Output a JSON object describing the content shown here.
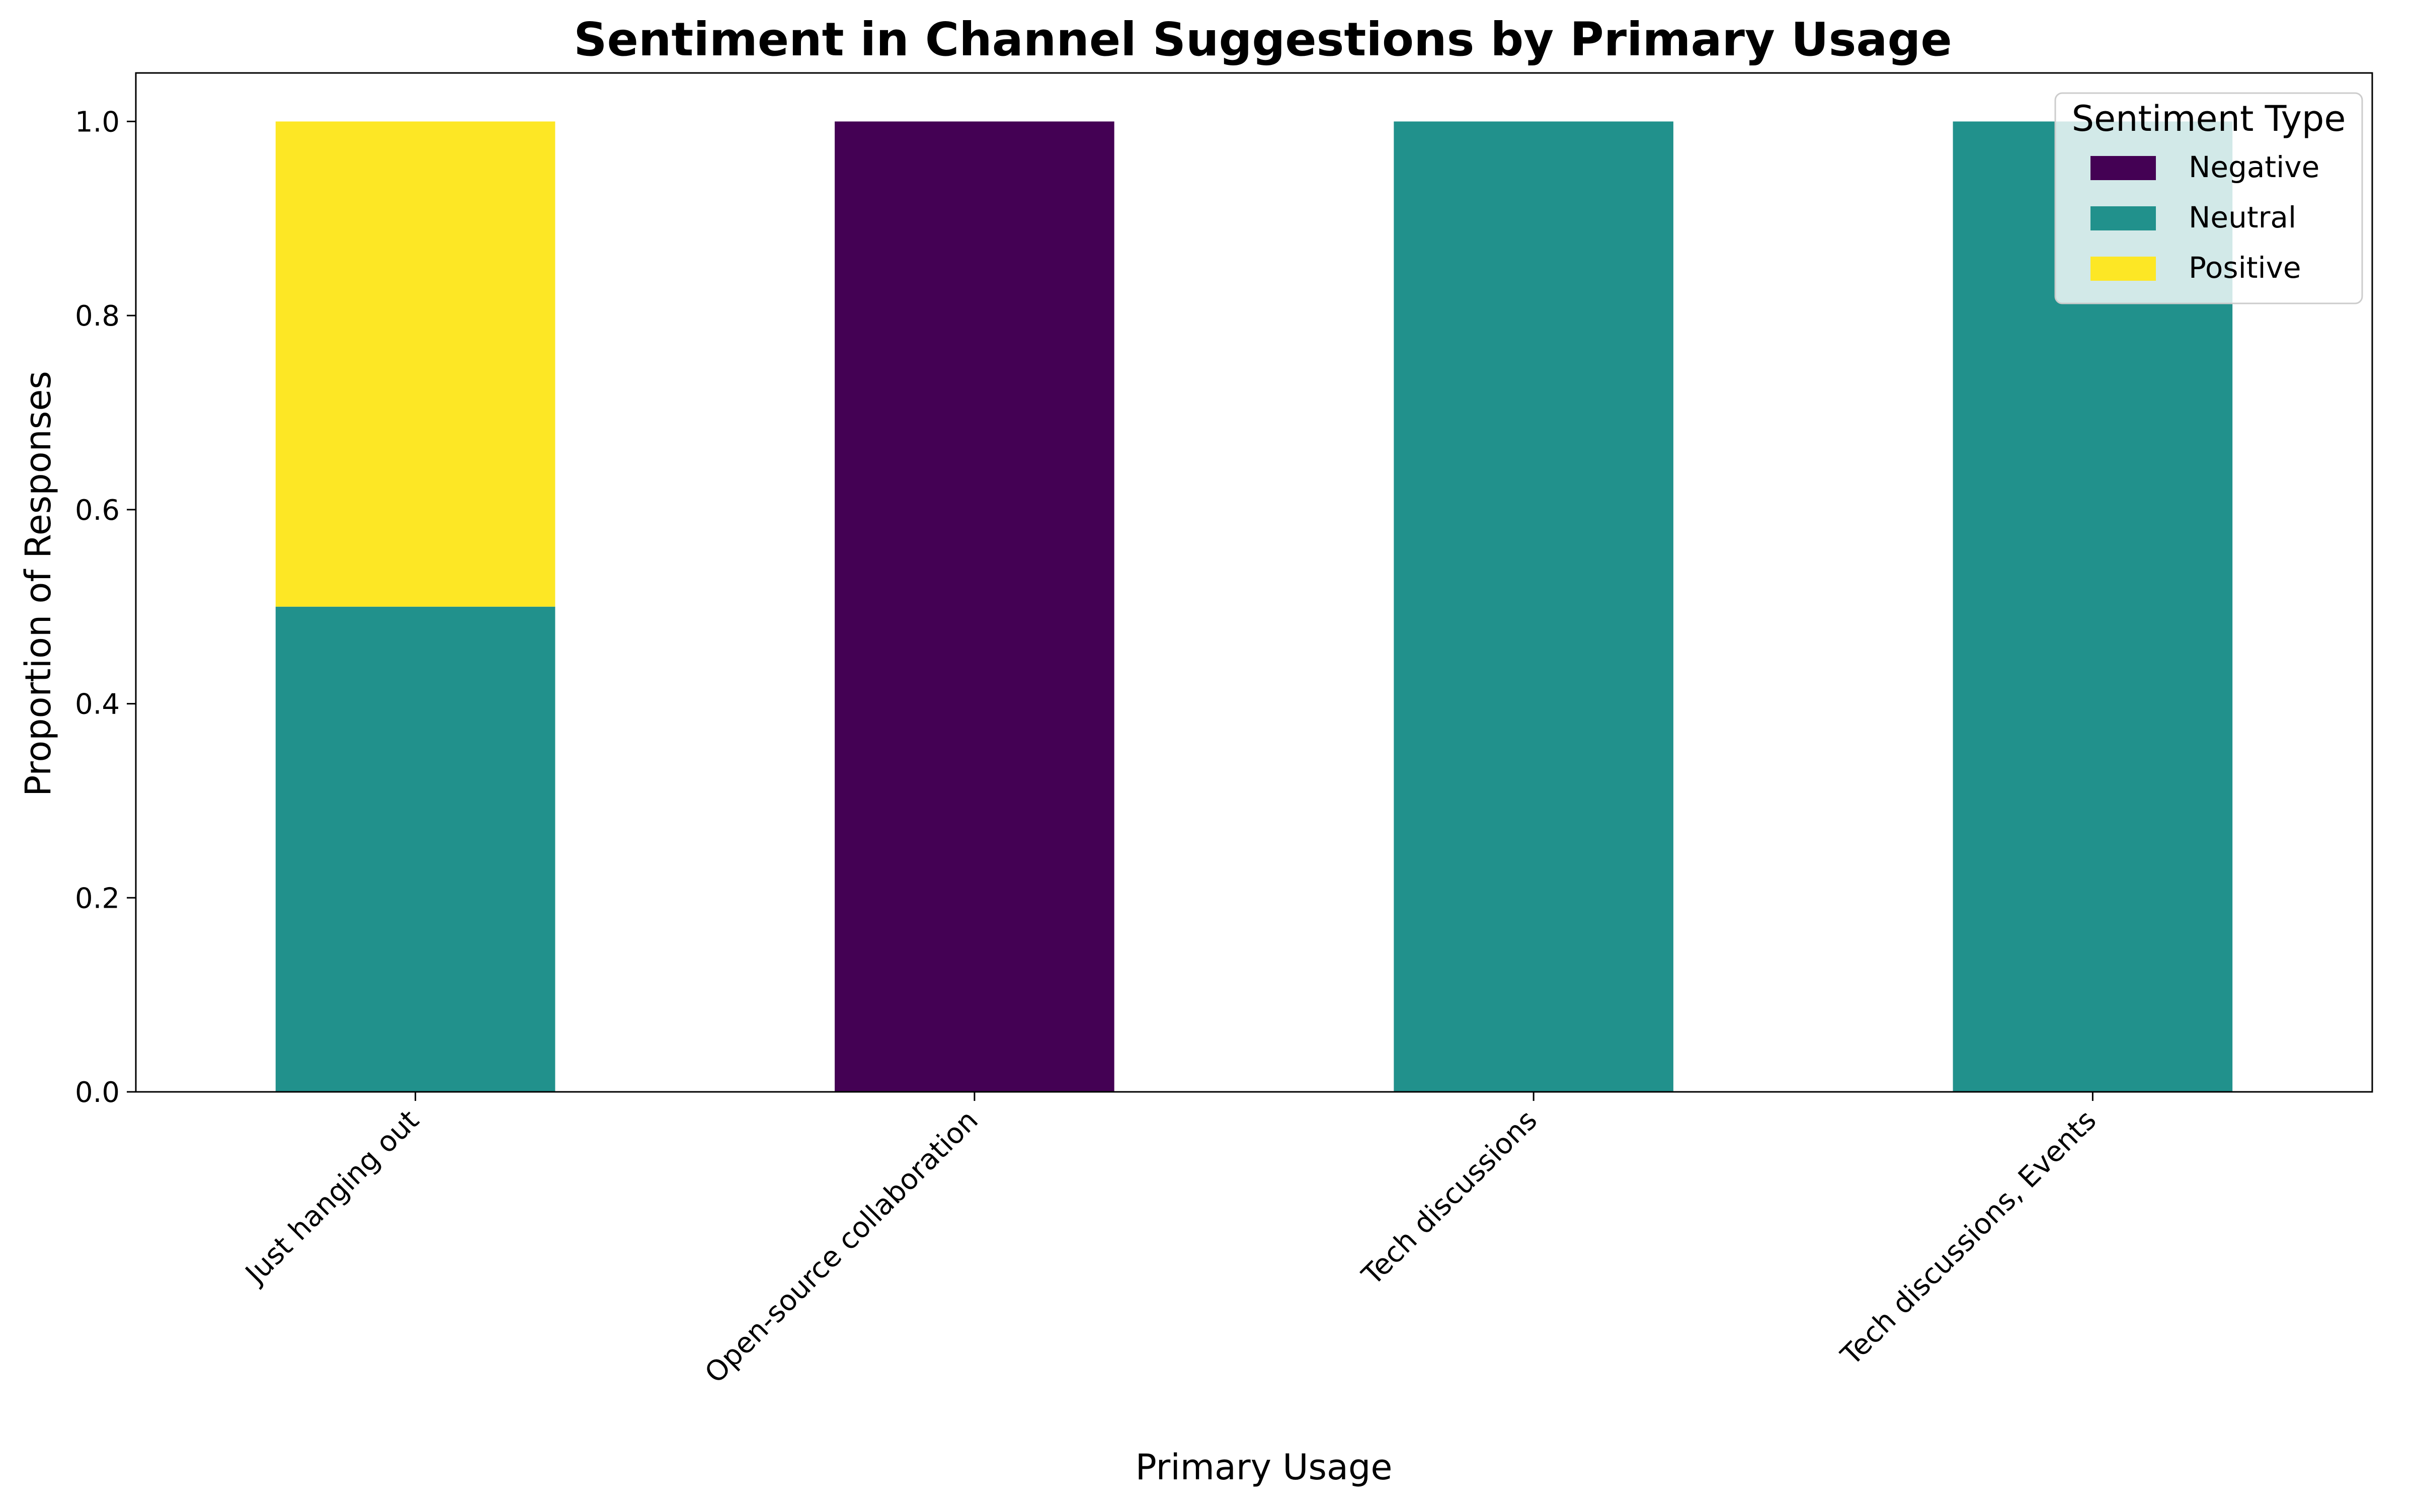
{
  "chart_data": {
    "type": "bar",
    "stacked": true,
    "title": "Sentiment in Channel Suggestions by Primary Usage",
    "xlabel": "Primary Usage",
    "ylabel": "Proportion of Responses",
    "categories": [
      "Just hanging out",
      "Open-source collaboration",
      "Tech discussions",
      "Tech discussions, Events"
    ],
    "series": [
      {
        "name": "Negative",
        "color": "#440154",
        "values": [
          0.0,
          1.0,
          0.0,
          0.0
        ]
      },
      {
        "name": "Neutral",
        "color": "#21918c",
        "values": [
          0.5,
          0.0,
          1.0,
          1.0
        ]
      },
      {
        "name": "Positive",
        "color": "#fde725",
        "values": [
          0.5,
          0.0,
          0.0,
          0.0
        ]
      }
    ],
    "ylim": [
      0,
      1.05
    ],
    "yticks": [
      0.0,
      0.2,
      0.4,
      0.6,
      0.8,
      1.0
    ],
    "ytick_labels": [
      "0.0",
      "0.2",
      "0.4",
      "0.6",
      "0.8",
      "1.0"
    ],
    "grid": false,
    "legend": {
      "title": "Sentiment Type",
      "placement": "top-right"
    }
  }
}
